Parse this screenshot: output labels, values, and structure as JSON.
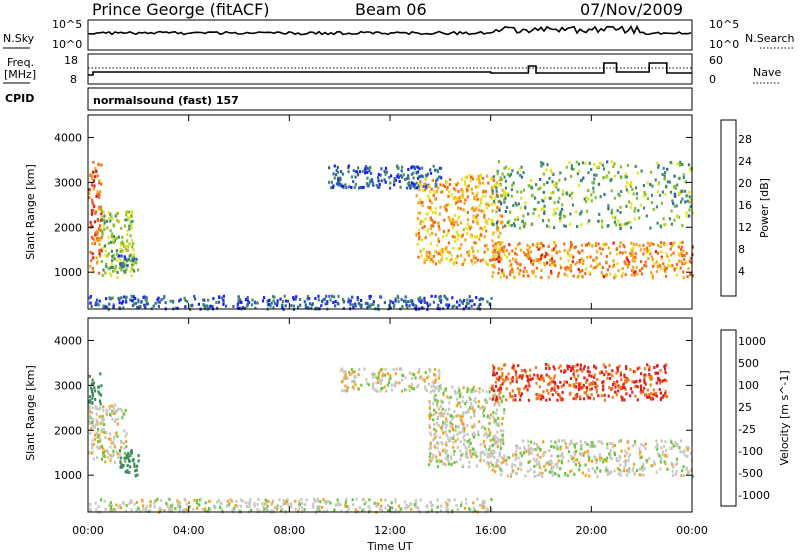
{
  "header": {
    "title": "Prince George (fitACF)",
    "beam": "Beam 06",
    "date": "07/Nov/2009"
  },
  "top_panels": {
    "nsky_label": "N.Sky",
    "nsky_ticks": [
      "10^5",
      "10^0"
    ],
    "nsearch_label": "N.Search",
    "freq_label_line1": "Freq.",
    "freq_label_line2": "[MHz]",
    "freq_ticks": [
      "18",
      "8"
    ],
    "nave_label": "Nave",
    "nave_ticks": [
      "60",
      "0"
    ],
    "cpid_label": "CPID",
    "cpid_text": "normalsound (fast) 157"
  },
  "power_panel": {
    "ylabel": "Slant Range [km]",
    "yticks": [
      "4000",
      "3000",
      "2000",
      "1000"
    ],
    "colorbar_label": "Power [dB]",
    "colorbar_ticks": [
      "28",
      "24",
      "20",
      "16",
      "12",
      "8",
      "4"
    ],
    "colorbar_colors": [
      "#1a1aff",
      "#2c5fa8",
      "#3c8a6e",
      "#7fbf2a",
      "#e7e21f",
      "#f6a21a",
      "#f26a1b",
      "#e11d1d"
    ]
  },
  "velocity_panel": {
    "ylabel": "Slant Range [km]",
    "yticks": [
      "4000",
      "3000",
      "2000",
      "1000"
    ],
    "colorbar_label": "Velocity [m s^-1]",
    "colorbar_ticks": [
      "1000",
      "500",
      "100",
      "25",
      "-25",
      "-100",
      "-500",
      "-1000"
    ],
    "colorbar_colors": [
      "#1c3fbf",
      "#2f6fb0",
      "#3b8a5a",
      "#64c63a",
      "#c8c8c0",
      "#f6a21a",
      "#f27a1b",
      "#e11d1d"
    ]
  },
  "x_axis": {
    "ticks": [
      "00:00",
      "04:00",
      "08:00",
      "12:00",
      "16:00",
      "20:00",
      "00:00"
    ],
    "label": "Time UT"
  },
  "chart_data": [
    {
      "type": "heatmap",
      "title": "Power [dB]",
      "xlabel": "Time UT",
      "ylabel": "Slant Range [km]",
      "xlim": [
        0,
        24
      ],
      "ylim": [
        180,
        4500
      ],
      "colorbar_range": [
        0,
        30
      ],
      "features": [
        {
          "t_start": 0.0,
          "t_end": 0.5,
          "range_low": 1000,
          "range_high": 3500,
          "power_db": 24
        },
        {
          "t_start": 0.5,
          "t_end": 1.8,
          "range_low": 900,
          "range_high": 2400,
          "power_db": 14
        },
        {
          "t_start": 1.2,
          "t_end": 2.0,
          "range_low": 1000,
          "range_high": 1400,
          "power_db": 8
        },
        {
          "t_start": 0.0,
          "t_end": 16.0,
          "range_low": 200,
          "range_high": 500,
          "power_db": 6
        },
        {
          "t_start": 9.5,
          "t_end": 14.0,
          "range_low": 2900,
          "range_high": 3400,
          "power_db": 6
        },
        {
          "t_start": 13.0,
          "t_end": 16.5,
          "range_low": 1200,
          "range_high": 3200,
          "power_db": 20
        },
        {
          "t_start": 16.0,
          "t_end": 24.0,
          "range_low": 900,
          "range_high": 1700,
          "power_db": 22
        },
        {
          "t_start": 16.0,
          "t_end": 24.0,
          "range_low": 2000,
          "range_high": 3500,
          "power_db": 12
        }
      ]
    },
    {
      "type": "heatmap",
      "title": "Velocity [m s^-1]",
      "xlabel": "Time UT",
      "ylabel": "Slant Range [km]",
      "xlim": [
        0,
        24
      ],
      "ylim": [
        180,
        4500
      ],
      "features": [
        {
          "t_start": 0.0,
          "t_end": 0.5,
          "range_low": 2600,
          "range_high": 3300,
          "velocity": 200
        },
        {
          "t_start": 0.0,
          "t_end": 1.5,
          "range_low": 1300,
          "range_high": 2600,
          "velocity": 0
        },
        {
          "t_start": 1.2,
          "t_end": 2.0,
          "range_low": 1000,
          "range_high": 1600,
          "velocity": 150
        },
        {
          "t_start": 0.0,
          "t_end": 16.0,
          "range_low": 200,
          "range_high": 500,
          "velocity": 0
        },
        {
          "t_start": 10.0,
          "t_end": 14.0,
          "range_low": 2900,
          "range_high": 3400,
          "velocity": 0
        },
        {
          "t_start": 13.5,
          "t_end": 16.5,
          "range_low": 1200,
          "range_high": 3000,
          "velocity": 0
        },
        {
          "t_start": 16.0,
          "t_end": 24.0,
          "range_low": 1000,
          "range_high": 1800,
          "velocity": 0
        },
        {
          "t_start": 16.0,
          "t_end": 23.0,
          "range_low": 2700,
          "range_high": 3500,
          "velocity": -300
        }
      ]
    }
  ]
}
